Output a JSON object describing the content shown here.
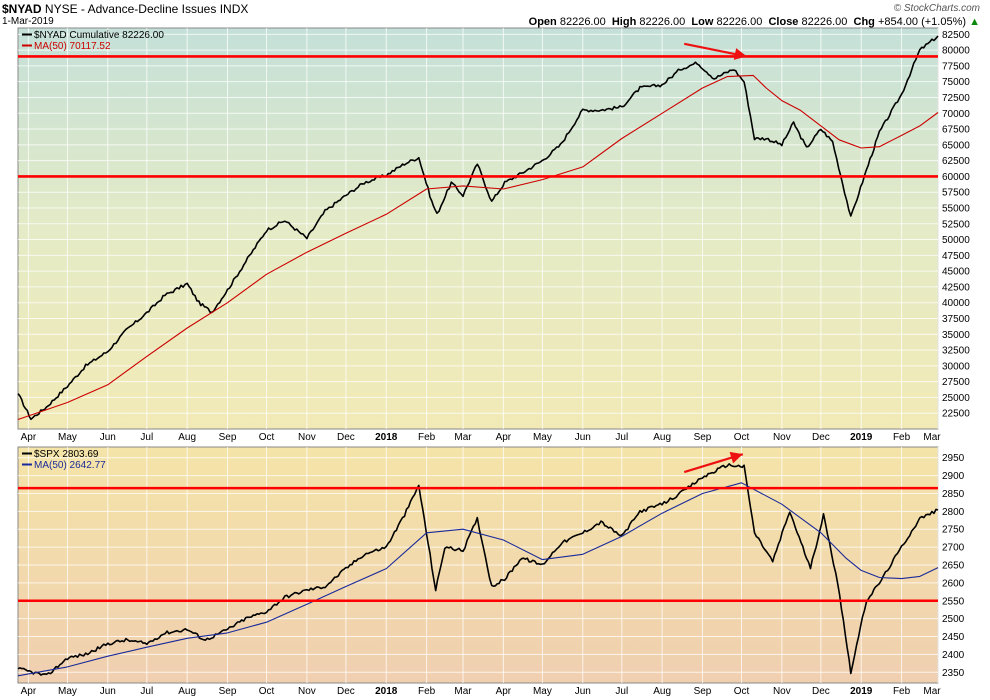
{
  "header": {
    "symbol": "$NYAD",
    "exchange": "NYSE - Advance-Decline Issues",
    "type": "INDX",
    "date": "1-Mar-2019",
    "open_label": "Open",
    "open": "82226.00",
    "high_label": "High",
    "high": "82226.00",
    "low_label": "Low",
    "low": "82226.00",
    "close_label": "Close",
    "close": "82226.00",
    "chg_label": "Chg",
    "chg": "+854.00 (+1.05%)",
    "chg_arrow": "▲",
    "watermark": "© StockCharts.com"
  },
  "x_axis": {
    "labels": [
      "Apr",
      "May",
      "Jun",
      "Jul",
      "Aug",
      "Sep",
      "Oct",
      "Nov",
      "Dec",
      "2018",
      "Feb",
      "Mar",
      "Apr",
      "May",
      "Jun",
      "Jul",
      "Aug",
      "Sep",
      "Oct",
      "Nov",
      "Dec",
      "2019",
      "Feb",
      "Mar"
    ],
    "bold": [
      "2018",
      "2019"
    ]
  },
  "colors": {
    "price": "#000000",
    "ma_top": "#cc0000",
    "ma_bottom": "#1a2a9a",
    "level": "#ff0000",
    "annotation_arrow": "#ee1111"
  },
  "chart_data": [
    {
      "type": "line",
      "panel": "top",
      "legend": [
        {
          "label": "$NYAD Cumulative 82226.00",
          "color": "#000000"
        },
        {
          "label": "MA(50) 70117.52",
          "color": "#cc0000"
        }
      ],
      "ylim": [
        20000,
        83500
      ],
      "yticks": [
        22500,
        25000,
        27500,
        30000,
        32500,
        35000,
        37500,
        40000,
        42500,
        45000,
        47500,
        50000,
        52500,
        55000,
        57500,
        60000,
        62500,
        65000,
        67500,
        70000,
        72500,
        75000,
        77500,
        80000,
        82500
      ],
      "x_range": [
        "2017-03-24",
        "2019-03-01"
      ],
      "series": [
        {
          "name": "$NYAD Cumulative",
          "x": [
            "2017-03-24",
            "2017-04-03",
            "2017-04-15",
            "2017-05-01",
            "2017-05-15",
            "2017-06-01",
            "2017-06-15",
            "2017-07-01",
            "2017-07-15",
            "2017-08-01",
            "2017-08-10",
            "2017-08-20",
            "2017-09-01",
            "2017-09-15",
            "2017-10-01",
            "2017-10-15",
            "2017-11-01",
            "2017-11-15",
            "2017-12-01",
            "2017-12-15",
            "2018-01-01",
            "2018-01-15",
            "2018-01-26",
            "2018-02-05",
            "2018-02-09",
            "2018-02-20",
            "2018-03-01",
            "2018-03-12",
            "2018-03-23",
            "2018-04-02",
            "2018-04-15",
            "2018-05-01",
            "2018-05-15",
            "2018-06-01",
            "2018-06-15",
            "2018-07-01",
            "2018-07-15",
            "2018-08-01",
            "2018-08-15",
            "2018-08-28",
            "2018-09-10",
            "2018-09-25",
            "2018-10-03",
            "2018-10-11",
            "2018-10-20",
            "2018-11-01",
            "2018-11-10",
            "2018-11-20",
            "2018-12-01",
            "2018-12-10",
            "2018-12-24",
            "2019-01-05",
            "2019-01-15",
            "2019-02-01",
            "2019-02-15",
            "2019-03-01"
          ],
          "values": [
            25600,
            21600,
            23500,
            26800,
            30000,
            32300,
            35600,
            38400,
            41200,
            43000,
            40000,
            38500,
            42000,
            46500,
            51500,
            53000,
            50200,
            54500,
            57000,
            59000,
            60200,
            62000,
            63000,
            56000,
            54000,
            59000,
            57000,
            62000,
            56000,
            59000,
            60500,
            62500,
            65000,
            70500,
            70500,
            71000,
            74000,
            74500,
            77000,
            78000,
            75500,
            77000,
            75000,
            66000,
            66000,
            65000,
            68500,
            64500,
            67500,
            65500,
            53500,
            61000,
            67000,
            73000,
            80000,
            82226
          ]
        },
        {
          "name": "MA(50)",
          "x": [
            "2017-03-24",
            "2017-05-01",
            "2017-06-01",
            "2017-07-01",
            "2017-08-01",
            "2017-09-01",
            "2017-10-01",
            "2017-11-01",
            "2017-12-01",
            "2018-01-01",
            "2018-02-01",
            "2018-03-01",
            "2018-04-01",
            "2018-05-01",
            "2018-06-01",
            "2018-07-01",
            "2018-08-01",
            "2018-09-01",
            "2018-09-20",
            "2018-10-10",
            "2018-10-20",
            "2018-11-01",
            "2018-11-15",
            "2018-12-01",
            "2018-12-15",
            "2019-01-01",
            "2019-01-15",
            "2019-02-01",
            "2019-02-15",
            "2019-03-01"
          ],
          "values": [
            21500,
            24200,
            27000,
            31500,
            36000,
            40000,
            44500,
            48000,
            51000,
            54000,
            58000,
            58500,
            58000,
            59500,
            61500,
            66000,
            70000,
            74000,
            75800,
            76000,
            74000,
            72000,
            70500,
            68000,
            65800,
            64500,
            64700,
            66500,
            68000,
            70117.52
          ]
        }
      ],
      "levels": [
        79000,
        60000
      ],
      "annotation_arrow": {
        "from": [
          "2018-08-18",
          81000
        ],
        "to": [
          "2018-10-05",
          79000
        ]
      }
    },
    {
      "type": "line",
      "panel": "bottom",
      "legend": [
        {
          "label": "$SPX 2803.69",
          "color": "#000000"
        },
        {
          "label": "MA(50) 2642.77",
          "color": "#1a2a9a"
        }
      ],
      "ylim": [
        2320,
        2980
      ],
      "yticks": [
        2350,
        2400,
        2450,
        2500,
        2550,
        2600,
        2650,
        2700,
        2750,
        2800,
        2850,
        2900,
        2950
      ],
      "x_range": [
        "2017-03-24",
        "2019-03-01"
      ],
      "series": [
        {
          "name": "$SPX",
          "x": [
            "2017-03-24",
            "2017-04-15",
            "2017-05-01",
            "2017-05-15",
            "2017-06-01",
            "2017-06-15",
            "2017-07-01",
            "2017-07-15",
            "2017-08-01",
            "2017-08-15",
            "2017-09-01",
            "2017-09-15",
            "2017-10-01",
            "2017-10-15",
            "2017-11-01",
            "2017-11-15",
            "2017-12-01",
            "2017-12-15",
            "2018-01-01",
            "2018-01-15",
            "2018-01-26",
            "2018-02-08",
            "2018-02-15",
            "2018-03-01",
            "2018-03-12",
            "2018-03-23",
            "2018-04-02",
            "2018-04-15",
            "2018-05-01",
            "2018-05-15",
            "2018-06-01",
            "2018-06-15",
            "2018-07-01",
            "2018-07-15",
            "2018-08-01",
            "2018-08-15",
            "2018-09-01",
            "2018-09-20",
            "2018-10-03",
            "2018-10-11",
            "2018-10-25",
            "2018-11-07",
            "2018-11-23",
            "2018-12-03",
            "2018-12-14",
            "2018-12-24",
            "2019-01-05",
            "2019-01-15",
            "2019-02-01",
            "2019-02-15",
            "2019-03-01"
          ],
          "values": [
            2360,
            2340,
            2390,
            2400,
            2430,
            2440,
            2430,
            2460,
            2470,
            2440,
            2470,
            2500,
            2520,
            2560,
            2580,
            2590,
            2640,
            2680,
            2700,
            2790,
            2872,
            2580,
            2700,
            2690,
            2780,
            2590,
            2610,
            2670,
            2650,
            2710,
            2740,
            2770,
            2730,
            2800,
            2820,
            2850,
            2895,
            2930,
            2925,
            2740,
            2660,
            2800,
            2640,
            2790,
            2600,
            2351,
            2550,
            2600,
            2700,
            2780,
            2803.69
          ]
        },
        {
          "name": "MA(50)",
          "x": [
            "2017-03-24",
            "2017-05-01",
            "2017-06-01",
            "2017-07-01",
            "2017-08-01",
            "2017-09-01",
            "2017-10-01",
            "2017-11-01",
            "2017-12-01",
            "2018-01-01",
            "2018-02-01",
            "2018-03-01",
            "2018-04-01",
            "2018-05-01",
            "2018-06-01",
            "2018-07-01",
            "2018-08-01",
            "2018-09-01",
            "2018-10-01",
            "2018-11-01",
            "2018-12-01",
            "2018-12-20",
            "2019-01-01",
            "2019-01-15",
            "2019-02-01",
            "2019-02-15",
            "2019-03-01"
          ],
          "values": [
            2340,
            2365,
            2395,
            2420,
            2445,
            2460,
            2490,
            2540,
            2590,
            2640,
            2740,
            2750,
            2720,
            2665,
            2680,
            2730,
            2795,
            2850,
            2880,
            2820,
            2740,
            2670,
            2635,
            2615,
            2612,
            2618,
            2642.77
          ]
        }
      ],
      "levels": [
        2865,
        2550
      ],
      "annotation_arrow": {
        "from": [
          "2018-08-18",
          2910
        ],
        "to": [
          "2018-10-02",
          2960
        ]
      }
    }
  ]
}
